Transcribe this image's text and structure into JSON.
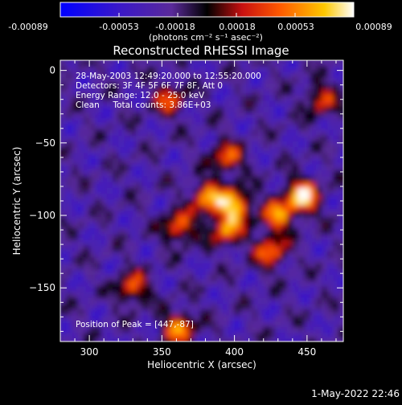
{
  "colorbar": {
    "ticks": [
      "-0.00089",
      "-0.00053",
      "-0.00018",
      "0.00018",
      "0.00053",
      "0.00089"
    ],
    "unit_label": "(photons cm⁻² s⁻¹ asec⁻²)"
  },
  "chart_data": {
    "type": "heatmap",
    "title": "Reconstructed RHESSI Image",
    "xlabel": "Heliocentric X (arcsec)",
    "ylabel": "Heliocentric Y (arcsec)",
    "xlim": [
      280,
      475
    ],
    "ylim": [
      -187,
      7
    ],
    "x_ticks": [
      300,
      350,
      400,
      450
    ],
    "x_tick_labels": [
      "300",
      "350",
      "400",
      "450"
    ],
    "y_ticks": [
      0,
      -50,
      -100,
      -150
    ],
    "y_tick_labels": [
      "0",
      "−50",
      "−100",
      "−150"
    ],
    "color_range": [
      -0.00089,
      0.00089
    ],
    "annotations": [
      "28-May-2003 12:49:20.000 to 12:55:20.000",
      "Detectors: 3F 4F 5F 6F 7F 8F, Att 0",
      "Energy Range: 12.0 - 25.0 keV",
      "Clean     Total counts: 3.86E+03"
    ],
    "peak_label": "Position of Peak = [447,-87]",
    "peak": [
      447,
      -87
    ],
    "bright_sources": [
      {
        "x": 447,
        "y": -87,
        "value": 0.00089
      },
      {
        "x": 400,
        "y": -93,
        "value": 0.00075
      },
      {
        "x": 382,
        "y": -88,
        "value": 0.00062
      },
      {
        "x": 430,
        "y": -100,
        "value": 0.00055
      },
      {
        "x": 395,
        "y": -110,
        "value": 0.0005
      },
      {
        "x": 425,
        "y": -125,
        "value": 0.00048
      },
      {
        "x": 362,
        "y": -108,
        "value": 0.00045
      },
      {
        "x": 362,
        "y": -178,
        "value": 0.00055
      },
      {
        "x": 330,
        "y": -150,
        "value": 0.0004
      },
      {
        "x": 395,
        "y": -60,
        "value": 0.0004
      },
      {
        "x": 355,
        "y": -20,
        "value": 0.00035
      },
      {
        "x": 460,
        "y": -20,
        "value": 0.0003
      }
    ]
  },
  "timestamp": "1-May-2022 22:46"
}
